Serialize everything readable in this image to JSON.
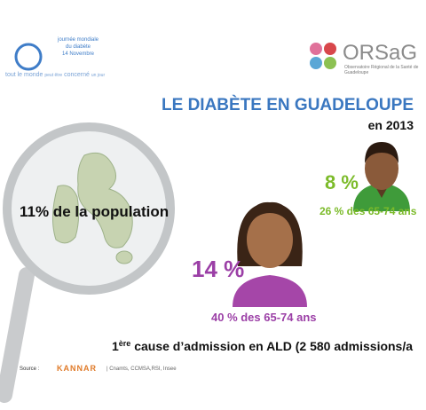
{
  "header": {
    "event_logo": {
      "line1": "journée mondiale",
      "line2": "du diabète",
      "line3": "14 Novembre",
      "tagline1": "tout le monde",
      "tagline2": "peut être",
      "tagline3": "concerné",
      "tagline4": "un jour"
    },
    "org_logo": {
      "name": "ORSaG",
      "full_name1": "Observatoire Régional de la Santé de",
      "full_name2": "Guadeloupe"
    },
    "title": "LE DIABÈTE EN GUADELOUPE",
    "subtitle": "en 2013"
  },
  "stats": {
    "population": "11%  de la population",
    "men": {
      "rate": "8 %",
      "detail": "26 % des 65-74 ans"
    },
    "women": {
      "rate": "14 %",
      "detail": "40 % des 65-74 ans"
    },
    "ald": {
      "rank": "1",
      "suffix": "ère",
      "text": " cause d’admission en ALD (2 580 admissions/a"
    }
  },
  "footer": {
    "label": "Source :",
    "brand": "KANNAR",
    "sources": "| Cnamts, CCMSA,RSI, Insee"
  }
}
